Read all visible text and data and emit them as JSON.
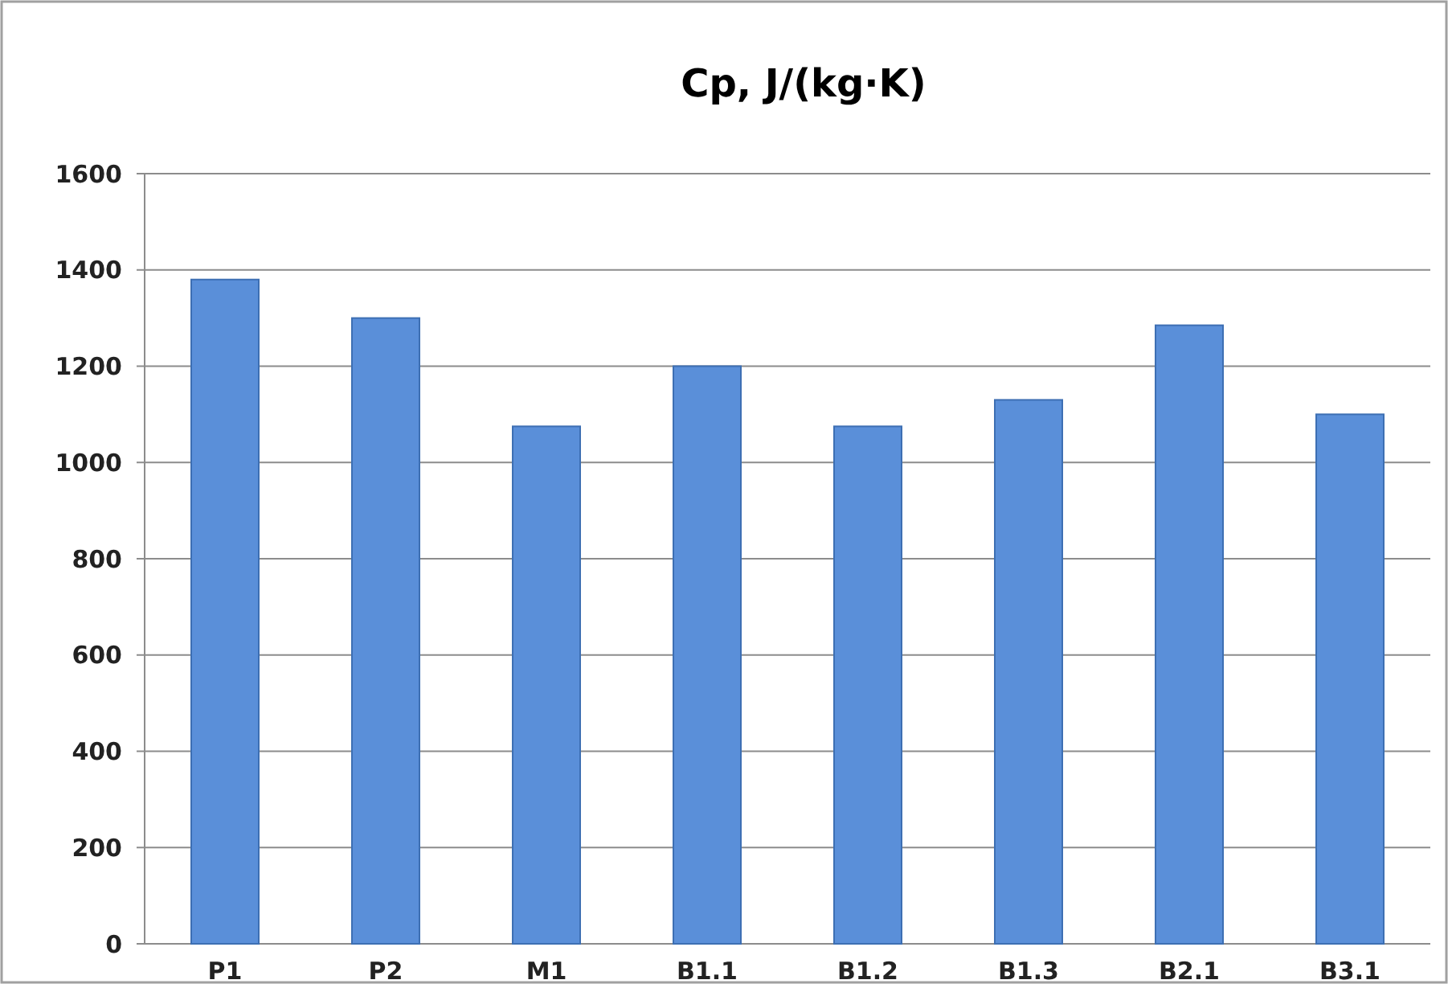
{
  "chart_data": {
    "type": "bar",
    "title": "Cp, J/(kg·K)",
    "categories": [
      "P1",
      "P2",
      "M1",
      "B1.1",
      "B1.2",
      "B1.3",
      "B2.1",
      "B3.1"
    ],
    "values": [
      1380,
      1300,
      1075,
      1200,
      1075,
      1130,
      1285,
      1100
    ],
    "color": "#5a8fd9",
    "ylim": [
      0,
      1600
    ],
    "yticks": [
      0,
      200,
      400,
      600,
      800,
      1000,
      1200,
      1400,
      1600
    ],
    "grid": "y"
  }
}
